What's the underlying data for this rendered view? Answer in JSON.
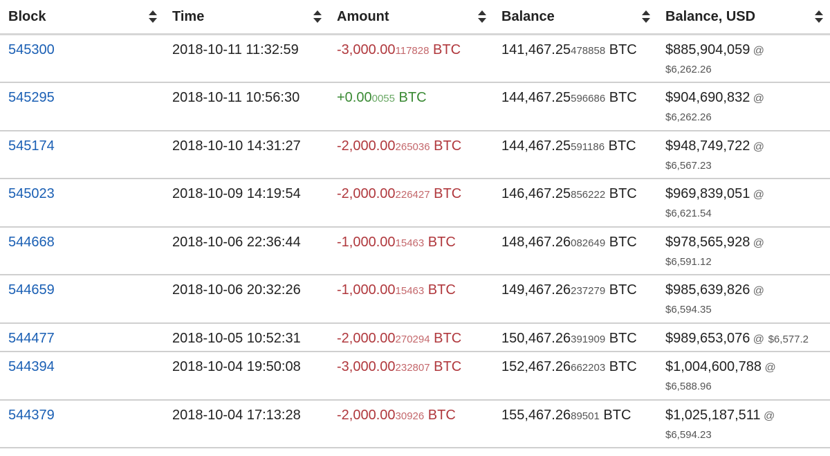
{
  "table": {
    "headers": [
      "Block",
      "Time",
      "Amount",
      "Balance",
      "Balance, USD"
    ],
    "rows": [
      {
        "block": "545300",
        "time": "2018-10-11 11:32:59",
        "amount_main": "-3,000.00",
        "amount_small": "117828",
        "amount_unit": " BTC",
        "amount_sign": "neg",
        "balance_main": "141,467.25",
        "balance_small": "478858",
        "balance_unit": " BTC",
        "usd": "$885,904,059",
        "at": " @",
        "rate": "$6,262.26",
        "rate_inline": false
      },
      {
        "block": "545295",
        "time": "2018-10-11 10:56:30",
        "amount_main": "+0.00",
        "amount_small": "0055",
        "amount_unit": " BTC",
        "amount_sign": "pos",
        "balance_main": "144,467.25",
        "balance_small": "596686",
        "balance_unit": " BTC",
        "usd": "$904,690,832",
        "at": " @",
        "rate": "$6,262.26",
        "rate_inline": false
      },
      {
        "block": "545174",
        "time": "2018-10-10 14:31:27",
        "amount_main": "-2,000.00",
        "amount_small": "265036",
        "amount_unit": " BTC",
        "amount_sign": "neg",
        "balance_main": "144,467.25",
        "balance_small": "591186",
        "balance_unit": " BTC",
        "usd": "$948,749,722",
        "at": " @",
        "rate": "$6,567.23",
        "rate_inline": false
      },
      {
        "block": "545023",
        "time": "2018-10-09 14:19:54",
        "amount_main": "-2,000.00",
        "amount_small": "226427",
        "amount_unit": " BTC",
        "amount_sign": "neg",
        "balance_main": "146,467.25",
        "balance_small": "856222",
        "balance_unit": " BTC",
        "usd": "$969,839,051",
        "at": " @",
        "rate": "$6,621.54",
        "rate_inline": false
      },
      {
        "block": "544668",
        "time": "2018-10-06 22:36:44",
        "amount_main": "-1,000.00",
        "amount_small": "15463",
        "amount_unit": " BTC",
        "amount_sign": "neg",
        "balance_main": "148,467.26",
        "balance_small": "082649",
        "balance_unit": " BTC",
        "usd": "$978,565,928",
        "at": " @",
        "rate": "$6,591.12",
        "rate_inline": false
      },
      {
        "block": "544659",
        "time": "2018-10-06 20:32:26",
        "amount_main": "-1,000.00",
        "amount_small": "15463",
        "amount_unit": " BTC",
        "amount_sign": "neg",
        "balance_main": "149,467.26",
        "balance_small": "237279",
        "balance_unit": " BTC",
        "usd": "$985,639,826",
        "at": " @",
        "rate": "$6,594.35",
        "rate_inline": false
      },
      {
        "block": "544477",
        "time": "2018-10-05 10:52:31",
        "amount_main": "-2,000.00",
        "amount_small": "270294",
        "amount_unit": " BTC",
        "amount_sign": "neg",
        "balance_main": "150,467.26",
        "balance_small": "391909",
        "balance_unit": " BTC",
        "usd": "$989,653,076",
        "at": " @",
        "rate": "$6,577.2",
        "rate_inline": true
      },
      {
        "block": "544394",
        "time": "2018-10-04 19:50:08",
        "amount_main": "-3,000.00",
        "amount_small": "232807",
        "amount_unit": " BTC",
        "amount_sign": "neg",
        "balance_main": "152,467.26",
        "balance_small": "662203",
        "balance_unit": " BTC",
        "usd": "$1,004,600,788",
        "at": " @",
        "rate": "$6,588.96",
        "rate_inline": false
      },
      {
        "block": "544379",
        "time": "2018-10-04 17:13:28",
        "amount_main": "-2,000.00",
        "amount_small": "30926",
        "amount_unit": " BTC",
        "amount_sign": "neg",
        "balance_main": "155,467.26",
        "balance_small": "89501",
        "balance_unit": " BTC",
        "usd": "$1,025,187,511",
        "at": " @",
        "rate": "$6,594.23",
        "rate_inline": false
      }
    ]
  },
  "colors": {
    "link": "#1a5fb4",
    "negative": "#b0383d",
    "positive": "#3a8a34"
  },
  "icons": {
    "sort": "sort-updown-icon"
  }
}
